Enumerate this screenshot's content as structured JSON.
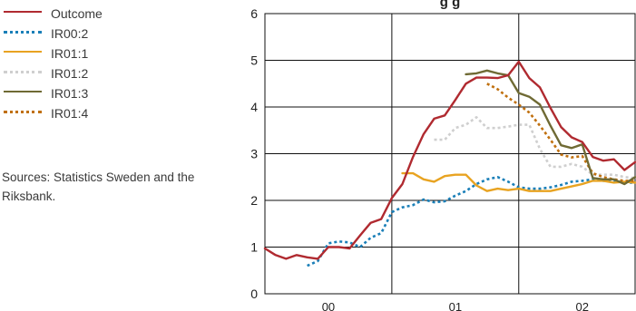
{
  "legend": [
    {
      "label": "Outcome",
      "color": "#b02a30",
      "dash": "solid"
    },
    {
      "label": "IR00:2",
      "color": "#1a7fb8",
      "dash": "dotted"
    },
    {
      "label": "IR01:1",
      "color": "#e8a321",
      "dash": "solid"
    },
    {
      "label": "IR01:2",
      "color": "#cfcfcf",
      "dash": "dotted"
    },
    {
      "label": "IR01:3",
      "color": "#6f6a34",
      "dash": "solid"
    },
    {
      "label": "IR01:4",
      "color": "#c0700f",
      "dash": "dotted"
    }
  ],
  "sources": "Sources: Statistics Sweden and the Riksbank.",
  "chart_data": {
    "type": "line",
    "title": "g g",
    "xlim": [
      0,
      35
    ],
    "ylim": [
      0,
      6
    ],
    "y_ticks": [
      0,
      1,
      2,
      3,
      4,
      5,
      6
    ],
    "x_tick_labels": [
      {
        "label": "00",
        "x": 6
      },
      {
        "label": "01",
        "x": 18
      },
      {
        "label": "02",
        "x": 30
      }
    ],
    "year_boundaries": [
      12,
      24
    ],
    "grid": "horizontal and year dividers",
    "series": [
      {
        "name": "Outcome",
        "x": [
          0,
          1,
          2,
          3,
          4,
          5,
          6,
          7,
          8,
          9,
          10,
          11,
          12,
          13,
          14,
          15,
          16,
          17,
          18,
          19,
          20,
          21,
          22,
          23,
          24,
          25,
          26,
          27,
          28,
          29,
          30,
          31,
          32,
          33,
          34,
          35
        ],
        "y": [
          0.97,
          0.83,
          0.75,
          0.83,
          0.78,
          0.75,
          1.0,
          1.0,
          0.97,
          1.25,
          1.52,
          1.6,
          2.05,
          2.35,
          2.93,
          3.42,
          3.75,
          3.82,
          4.15,
          4.5,
          4.63,
          4.63,
          4.62,
          4.68,
          4.97,
          4.62,
          4.42,
          3.98,
          3.57,
          3.35,
          3.25,
          2.93,
          2.85,
          2.88,
          2.65,
          2.82
        ]
      },
      {
        "name": "IR00:2",
        "x": [
          4,
          5,
          6,
          7,
          8,
          9,
          10,
          11,
          12,
          13,
          14,
          15,
          16,
          17,
          18,
          19,
          20,
          21,
          22,
          23,
          24,
          25,
          26,
          27,
          28,
          29,
          30,
          31,
          32,
          33,
          34,
          35
        ],
        "y": [
          0.6,
          0.7,
          1.08,
          1.12,
          1.1,
          1.0,
          1.2,
          1.3,
          1.75,
          1.85,
          1.9,
          2.02,
          1.96,
          1.98,
          2.1,
          2.2,
          2.35,
          2.45,
          2.5,
          2.4,
          2.28,
          2.25,
          2.25,
          2.28,
          2.33,
          2.4,
          2.42,
          2.45,
          2.42,
          2.42,
          2.38,
          2.38
        ]
      },
      {
        "name": "IR01:1",
        "x": [
          13,
          14,
          15,
          16,
          17,
          18,
          19,
          20,
          21,
          22,
          23,
          24,
          25,
          26,
          27,
          28,
          29,
          30,
          31,
          32,
          33,
          34,
          35
        ],
        "y": [
          2.58,
          2.58,
          2.45,
          2.4,
          2.52,
          2.55,
          2.55,
          2.32,
          2.2,
          2.25,
          2.22,
          2.25,
          2.2,
          2.2,
          2.2,
          2.25,
          2.3,
          2.35,
          2.42,
          2.42,
          2.38,
          2.4,
          2.38
        ]
      },
      {
        "name": "IR01:2",
        "x": [
          16,
          17,
          18,
          19,
          20,
          21,
          22,
          23,
          24,
          25,
          26,
          27,
          28,
          29,
          30,
          31,
          32,
          33,
          34,
          35
        ],
        "y": [
          3.3,
          3.3,
          3.55,
          3.62,
          3.78,
          3.55,
          3.55,
          3.58,
          3.62,
          3.62,
          3.1,
          2.72,
          2.72,
          2.78,
          2.72,
          2.55,
          2.55,
          2.55,
          2.5,
          2.48
        ]
      },
      {
        "name": "IR01:3",
        "x": [
          19,
          20,
          21,
          22,
          23,
          24,
          25,
          26,
          27,
          28,
          29,
          30,
          31,
          32,
          33,
          34,
          35
        ],
        "y": [
          4.7,
          4.72,
          4.78,
          4.72,
          4.68,
          4.3,
          4.22,
          4.05,
          3.6,
          3.18,
          3.12,
          3.2,
          2.48,
          2.45,
          2.45,
          2.35,
          2.5
        ]
      },
      {
        "name": "IR01:4",
        "x": [
          21,
          22,
          23,
          24,
          25,
          26,
          27,
          28,
          29,
          30,
          31,
          32,
          33,
          34,
          35
        ],
        "y": [
          4.5,
          4.38,
          4.2,
          4.05,
          3.88,
          3.6,
          3.3,
          2.98,
          2.92,
          2.95,
          2.58,
          2.5,
          2.45,
          2.42,
          2.42
        ]
      }
    ]
  }
}
